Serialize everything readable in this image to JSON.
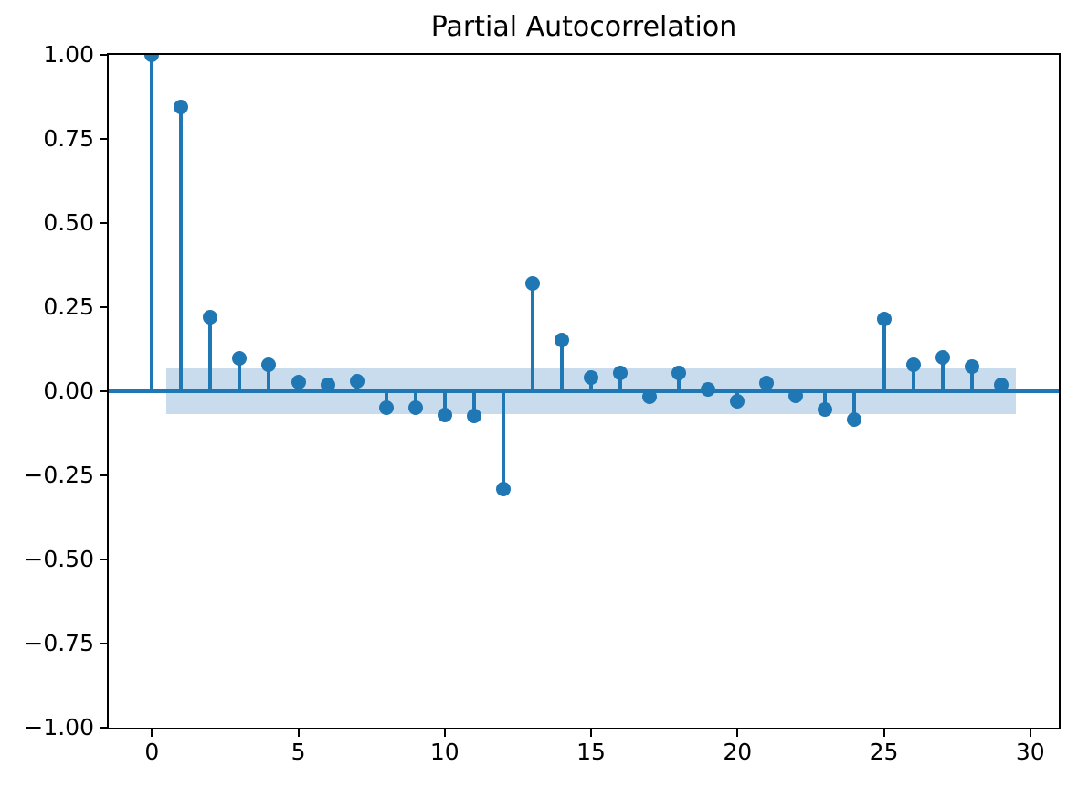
{
  "figure": {
    "background": "#ffffff"
  },
  "chart_data": {
    "type": "stem",
    "title": "Partial Autocorrelation",
    "xlabel": "",
    "ylabel": "",
    "x": [
      0,
      1,
      2,
      3,
      4,
      5,
      6,
      7,
      8,
      9,
      10,
      11,
      12,
      13,
      14,
      15,
      16,
      17,
      18,
      19,
      20,
      21,
      22,
      23,
      24,
      25,
      26,
      27,
      28,
      29
    ],
    "values": [
      1.0,
      0.845,
      0.22,
      0.098,
      0.08,
      0.028,
      0.019,
      0.031,
      -0.049,
      -0.049,
      -0.072,
      -0.074,
      -0.29,
      0.32,
      0.152,
      0.041,
      0.054,
      -0.015,
      0.053,
      0.005,
      -0.029,
      0.025,
      -0.014,
      -0.053,
      -0.083,
      0.214,
      0.08,
      0.1,
      0.073,
      0.019
    ],
    "confidence_band": {
      "lower": -0.067,
      "upper": 0.067,
      "x_start": 0.5,
      "x_end": 29.5
    },
    "xlim": [
      -1.475,
      30.975
    ],
    "ylim": [
      -1.0,
      1.0
    ],
    "xticks": {
      "values": [
        0,
        5,
        10,
        15,
        20,
        25,
        30
      ],
      "labels": [
        "0",
        "5",
        "10",
        "15",
        "20",
        "25",
        "30"
      ]
    },
    "yticks": {
      "values": [
        1.0,
        0.75,
        0.5,
        0.25,
        0.0,
        -0.25,
        -0.5,
        -0.75,
        -1.0
      ],
      "labels": [
        "1.00",
        "0.75",
        "0.50",
        "0.25",
        "0.00",
        "−0.25",
        "−0.50",
        "−0.75",
        "−1.00"
      ]
    },
    "grid": false,
    "legend": "none",
    "colors": {
      "stem": "#1f77b4",
      "marker": "#1f77b4",
      "zero_line": "#1f77b4",
      "band_fill": "#c8dcee",
      "spine": "#000000",
      "text": "#000000"
    }
  }
}
